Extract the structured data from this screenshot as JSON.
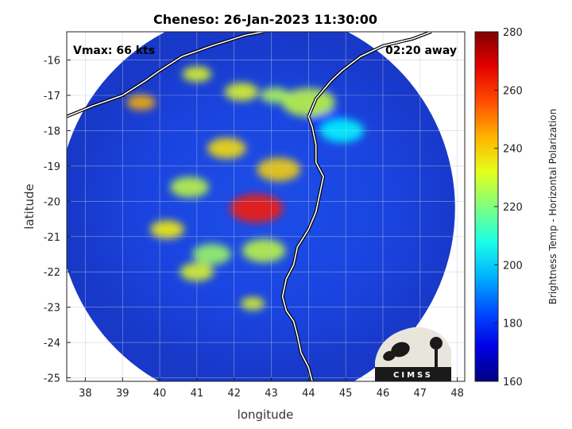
{
  "chart_data": {
    "type": "heatmap",
    "title": "Cheneso: 26-Jan-2023 11:30:00",
    "xlabel": "longitude",
    "ylabel": "latitude",
    "xlim": [
      37.5,
      48.2
    ],
    "ylim": [
      -25.1,
      -15.2
    ],
    "x_ticks": [
      38,
      39,
      40,
      41,
      42,
      43,
      44,
      45,
      46,
      47,
      48
    ],
    "y_ticks": [
      -16,
      -17,
      -18,
      -19,
      -20,
      -21,
      -22,
      -23,
      -24,
      -25
    ],
    "grid": true,
    "annotations": {
      "vmax": "Vmax: 66 kts",
      "away": "02:20 away"
    },
    "storm_center": {
      "lon": 42.6,
      "lat": -20.2
    },
    "colorbar": {
      "label": "Brightness Temp - Horizontal Polarization",
      "range": [
        160,
        280
      ],
      "ticks": [
        280,
        260,
        240,
        220,
        200,
        180,
        160
      ],
      "colormap": "jet"
    },
    "features": [
      {
        "name": "coastline",
        "points": [
          [
            44.0,
            -17.6
          ],
          [
            44.1,
            -17.9
          ],
          [
            44.2,
            -18.4
          ],
          [
            44.2,
            -18.9
          ],
          [
            44.4,
            -19.3
          ],
          [
            44.3,
            -19.8
          ],
          [
            44.2,
            -20.3
          ],
          [
            44.0,
            -20.8
          ],
          [
            43.7,
            -21.3
          ],
          [
            43.6,
            -21.8
          ],
          [
            43.4,
            -22.2
          ],
          [
            43.3,
            -22.7
          ],
          [
            43.4,
            -23.1
          ],
          [
            43.6,
            -23.4
          ],
          [
            43.7,
            -23.8
          ],
          [
            43.8,
            -24.3
          ],
          [
            44.0,
            -24.7
          ],
          [
            44.1,
            -25.1
          ]
        ]
      },
      {
        "name": "coastline-north",
        "points": [
          [
            44.0,
            -17.6
          ],
          [
            44.2,
            -17.1
          ],
          [
            44.6,
            -16.6
          ],
          [
            44.9,
            -16.3
          ],
          [
            45.4,
            -15.9
          ],
          [
            46.0,
            -15.6
          ],
          [
            46.8,
            -15.4
          ],
          [
            47.3,
            -15.2
          ]
        ]
      },
      {
        "name": "coastline-mainland",
        "points": [
          [
            37.5,
            -17.6
          ],
          [
            38.2,
            -17.3
          ],
          [
            39.0,
            -17.0
          ],
          [
            39.6,
            -16.6
          ],
          [
            40.0,
            -16.3
          ],
          [
            40.6,
            -15.9
          ],
          [
            41.4,
            -15.6
          ],
          [
            42.3,
            -15.3
          ],
          [
            42.8,
            -15.2
          ]
        ]
      }
    ],
    "samples": [
      {
        "lon": 44.5,
        "lat": -17.7,
        "tb": 178,
        "r": 0.35
      },
      {
        "lon": 44.9,
        "lat": -18.0,
        "tb": 205,
        "r": 0.45
      },
      {
        "lon": 44.0,
        "lat": -17.2,
        "tb": 228,
        "r": 0.55
      },
      {
        "lon": 42.2,
        "lat": -16.9,
        "tb": 232,
        "r": 0.35
      },
      {
        "lon": 41.0,
        "lat": -16.4,
        "tb": 232,
        "r": 0.3
      },
      {
        "lon": 43.1,
        "lat": -17.0,
        "tb": 226,
        "r": 0.3
      },
      {
        "lon": 42.8,
        "lat": -21.4,
        "tb": 228,
        "r": 0.45
      },
      {
        "lon": 41.4,
        "lat": -21.5,
        "tb": 224,
        "r": 0.4
      },
      {
        "lon": 41.0,
        "lat": -22.0,
        "tb": 232,
        "r": 0.35
      },
      {
        "lon": 40.8,
        "lat": -19.6,
        "tb": 228,
        "r": 0.4
      },
      {
        "lon": 40.2,
        "lat": -20.8,
        "tb": 236,
        "r": 0.35
      },
      {
        "lon": 41.8,
        "lat": -18.5,
        "tb": 238,
        "r": 0.4
      },
      {
        "lon": 42.5,
        "lat": -22.9,
        "tb": 232,
        "r": 0.25
      },
      {
        "lon": 43.2,
        "lat": -19.1,
        "tb": 240,
        "r": 0.45
      },
      {
        "lon": 42.6,
        "lat": -20.2,
        "tb": 262,
        "r": 0.55
      },
      {
        "lon": 39.5,
        "lat": -17.2,
        "tb": 244,
        "r": 0.3
      }
    ]
  }
}
